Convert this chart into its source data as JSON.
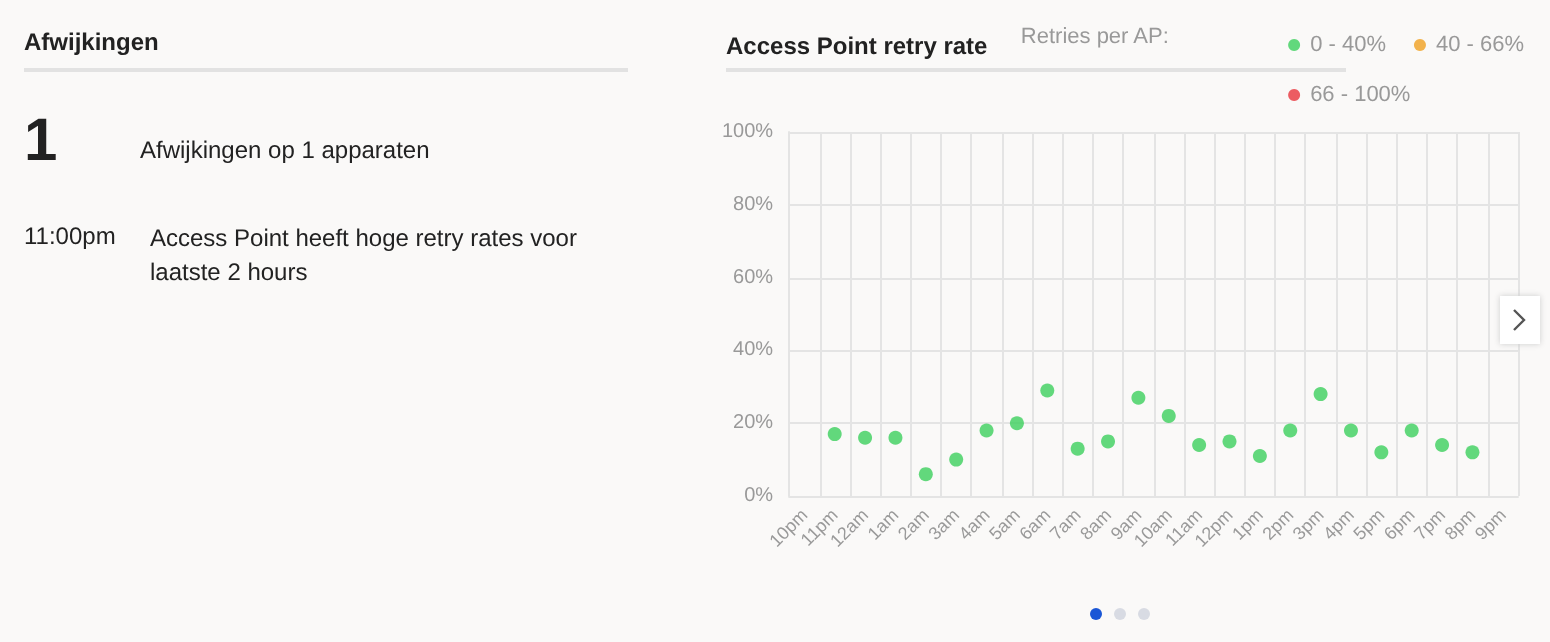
{
  "chart_data": [
    {
      "type": "other",
      "title": "Afwijkingen",
      "annotations": [
        "1",
        "Afwijkingen op 1 apparaten",
        "11:00pm",
        "Access Point heeft hoge retry rates voor laatste 2 hours"
      ]
    },
    {
      "type": "scatter",
      "title": "Access Point retry rate",
      "legend_title": "Retries per AP:",
      "legend": "top right",
      "grid": true,
      "marker": "circle",
      "categories": [
        "10pm",
        "11pm",
        "12am",
        "1am",
        "2am",
        "3am",
        "4am",
        "5am",
        "6am",
        "7am",
        "8am",
        "9am",
        "10am",
        "11am",
        "12pm",
        "1pm",
        "2pm",
        "3pm",
        "4pm",
        "5pm",
        "6pm",
        "7pm",
        "8pm",
        "9pm"
      ],
      "ylim": [
        0,
        100
      ],
      "yticks": [
        {
          "value": 0,
          "label": "0%"
        },
        {
          "value": 20,
          "label": "20%"
        },
        {
          "value": 40,
          "label": "40%"
        },
        {
          "value": 60,
          "label": "60%"
        },
        {
          "value": 80,
          "label": "80%"
        },
        {
          "value": 100,
          "label": "100%"
        }
      ],
      "series": [
        {
          "name": "0 - 40%",
          "color": "#3ccf5d",
          "values": [
            null,
            17,
            16,
            16,
            6,
            10,
            18,
            20,
            29,
            13,
            15,
            27,
            22,
            14,
            15,
            11,
            18,
            28,
            18,
            12,
            18,
            14,
            12,
            null
          ]
        },
        {
          "name": "40 - 66%",
          "color": "#f0a020",
          "values": [
            null,
            null,
            null,
            null,
            null,
            null,
            null,
            null,
            null,
            null,
            null,
            null,
            null,
            null,
            null,
            null,
            null,
            null,
            null,
            null,
            null,
            null,
            null,
            null
          ]
        },
        {
          "name": "66 - 100%",
          "color": "#e8343c",
          "values": [
            null,
            null,
            null,
            null,
            null,
            null,
            null,
            null,
            null,
            null,
            null,
            null,
            null,
            null,
            null,
            null,
            null,
            null,
            null,
            null,
            null,
            null,
            null,
            null
          ]
        }
      ]
    }
  ]
}
